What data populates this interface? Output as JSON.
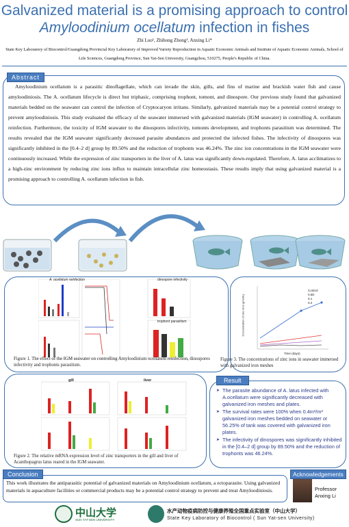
{
  "title_line1": "Galvanized material is a promising approach to control",
  "title_line2_italic": "Amyloodinium ocellatum",
  "title_line2_rest": " infection in fishes",
  "authors": "Zhi Luo¹, Zhihong Zhong¹, Anxing Li*",
  "affiliation": "State Key Laboratory of Biocontrol/Guangdong Provincial Key Laboratory of Improved Variety Reproduction in Aquatic Economic Animals and Institute of Aquatic Economic Animals, School of Life Sciences, Guangdong Province, Sun Yat-Sen University, Guangzhou, 510275, People's Republic of China.",
  "abstract": {
    "heading": "Abstract",
    "text": "Amyloodinium ocellatum is a parasitic dinoflagellate, which can invade the skin, gills, and fins of marine and brackish water fish and cause amyloodiniosis. The A. ocellatum lifecycle is direct but triphasic, comprising trophont, tomont, and dinospore. Our previous study found that galvanized materials bedded on the seawater can control the infection of Cryptocaryon irritans. Similarly, galvanized materials may be a potential control strategy to prevent amyloodiniosis. This study evaluated the efficacy of the seawater immersed with galvanized materials (IGM seawater) in controlling A. ocellatum reinfection. Furthermore, the toxicity of IGM seawater to the dinospores infectivity, tomonts development, and trophonts parasitism was determined. The results revealed that the IGM seawater significantly decreased parasite abundances and protected the infected fishes. The infectivity of dinospores was significantly inhibited in the [0.4–2 d] group by 89.50% and the reduction of trophonts was 46.24%. The zinc ion concentrations in the IGM seawater were continuously increased. While the expression of zinc transporters in the liver of A. latus was significantly down-regulated. Therefore, A. latus acclimatizes to a high-zinc environment by reducing zinc ions influx to maintain intracellular zinc homeostasis. These results imply that using galvanized material is a promising approach to controlling A. ocellatum infection in fish."
  },
  "figures": {
    "fig1_caption": "Figure 1. The effect of the IGM seawater on controlling Amyloodinium ocellatum reinfection, dinospores infectivity and trophonts parasitism.",
    "fig1_panel_a": "A. ocellatum reinfection",
    "fig1_panel_b": "dinospore infectivity",
    "fig1_panel_c": "trophont parasitism",
    "fig2_caption": "Figure 2. The relative mRNA expression level of zinc transporters in the gill and liver of Acanthopagrus latus reared in the IGM seawater.",
    "fig2_gill": "gill",
    "fig2_liver": "liver",
    "fig3_caption": "Figure 3. The concentrations of zinc ions in seawater immersed with galvanized iron meshes",
    "fig3_ylabel": "Concentration of zinc ions (μmol/L)",
    "fig3_xlabel": "Time (days)",
    "fig3_legend": [
      "Control",
      "0.5D",
      "0.1",
      "0.4"
    ]
  },
  "result": {
    "heading": "Result",
    "items": [
      "The parasite abundance of A. latus infected with A.ocellatum were significantly decreased with galvanized iron meshes and plates.",
      "The survival rates were 100% when 0.4m²/m³ galvanized iron meshes bedded on seawater or 56.25% of tank was covered with galvanized iron plates.",
      "The infectivity of dinospores was significantly inhibited in the [0.4–2 d] group by 89.50% and the reduction of trophonts was 46.24%."
    ]
  },
  "conclusion": {
    "heading": "Conclusion",
    "text": "This work illustrates the antiparasitic potential of galvanized materials on Amyloodinium ocellatum, a ectoparasite. Using galvanized materials in aquaculture facilities or commercial products may be a potential control strategy to prevent and treat Amyloodiniosis."
  },
  "acknowledgements": {
    "heading": "Acknowledgements",
    "name_line1": "Professor",
    "name_line2": "Anxing Li"
  },
  "footer": {
    "university_cn": "中山大学",
    "university_en": "SUN YAT-SEN UNIVERSITY",
    "lab_cn": "水产动物疫病防控与健康养殖全国重点实验室（中山大学）",
    "lab_en": "State Key Laboratory of Biocontrol ( Sun Yat-sen University)"
  },
  "colors": {
    "accent": "#3a6fb0",
    "tag_bg": "#4a7dc0",
    "result_text": "#2a3a8a"
  }
}
